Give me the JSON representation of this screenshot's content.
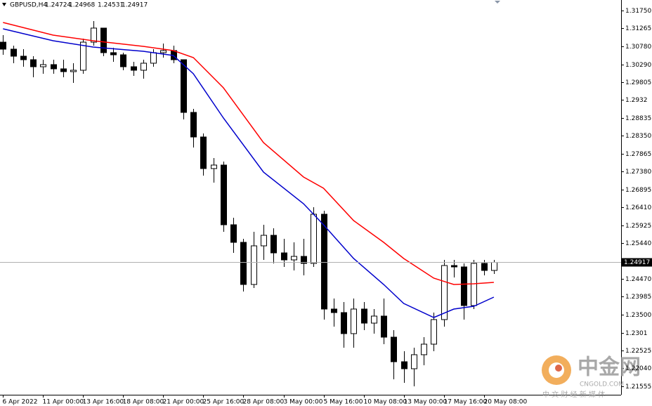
{
  "chart_data": {
    "type": "candlestick",
    "symbol": "GBPUSD,H4",
    "last_bar": {
      "open": 1.24724,
      "high": 1.24968,
      "low": 1.24531,
      "close": 1.24917
    },
    "candles": {
      "open": [
        1.30892,
        1.30702,
        1.30511,
        1.30416,
        1.30225,
        1.30283,
        1.30168,
        1.30092,
        1.3013,
        1.30892,
        1.31274,
        1.30607,
        1.30549,
        1.30225,
        1.3013,
        1.30321,
        1.30607,
        1.30664,
        1.30416,
        1.28986,
        1.28319,
        1.27462,
        1.27557,
        1.25937,
        1.2546,
        1.24317,
        1.25365,
        1.25651,
        1.25174,
        1.24984,
        1.25079,
        1.24889,
        1.26223,
        1.2365,
        1.23554,
        1.22983,
        1.2365,
        1.23268,
        1.23459,
        1.22887,
        1.2222,
        1.2203,
        1.22411,
        1.22697,
        1.23364,
        1.24831,
        1.24793,
        1.23745,
        1.24889,
        1.24698
      ],
      "high": [
        1.31083,
        1.30797,
        1.30702,
        1.30511,
        1.30416,
        1.30416,
        1.30416,
        1.30321,
        1.30988,
        1.31464,
        1.31274,
        1.3074,
        1.30607,
        1.30359,
        1.30416,
        1.30702,
        1.30854,
        1.30797,
        1.30416,
        1.29082,
        1.28415,
        1.27748,
        1.27652,
        1.26127,
        1.25556,
        1.25746,
        1.25937,
        1.25842,
        1.25556,
        1.2546,
        1.25556,
        1.26413,
        1.26318,
        1.23936,
        1.2384,
        1.23936,
        1.2384,
        1.2365,
        1.23936,
        1.23078,
        1.22506,
        1.22601,
        1.22887,
        1.23554,
        1.24984,
        1.24984,
        1.24889,
        1.24984,
        1.24984,
        1.24984
      ],
      "low": [
        1.30549,
        1.30321,
        1.30225,
        1.29939,
        1.30035,
        1.30035,
        1.29939,
        1.29787,
        1.30035,
        1.30797,
        1.30511,
        1.30359,
        1.3013,
        1.29978,
        1.29901,
        1.30225,
        1.30473,
        1.30321,
        1.28796,
        1.28033,
        1.27271,
        1.2708,
        1.25746,
        1.25174,
        1.24126,
        1.24221,
        1.24984,
        1.24889,
        1.24793,
        1.24698,
        1.24565,
        1.24793,
        1.23364,
        1.23173,
        1.22601,
        1.22601,
        1.23078,
        1.22983,
        1.22697,
        1.21744,
        1.21648,
        1.21553,
        1.22125,
        1.22506,
        1.23173,
        1.24507,
        1.23364,
        1.2365,
        1.24565,
        1.24603
      ],
      "close": [
        1.30702,
        1.30511,
        1.30416,
        1.30225,
        1.30283,
        1.30168,
        1.30092,
        1.3013,
        1.30892,
        1.31274,
        1.30607,
        1.30549,
        1.30225,
        1.3013,
        1.30321,
        1.30607,
        1.30664,
        1.30416,
        1.28986,
        1.28319,
        1.27462,
        1.27557,
        1.25937,
        1.2546,
        1.24317,
        1.25365,
        1.25651,
        1.25174,
        1.24984,
        1.25079,
        1.24889,
        1.26223,
        1.2365,
        1.23554,
        1.22983,
        1.2365,
        1.23268,
        1.23459,
        1.22887,
        1.2222,
        1.2203,
        1.22411,
        1.22697,
        1.23364,
        1.24831,
        1.24793,
        1.23745,
        1.24889,
        1.24698,
        1.24917
      ]
    },
    "series": [
      {
        "color": "#ff0000",
        "x": [
          0,
          5,
          9,
          14,
          17,
          19,
          22,
          26,
          30,
          32,
          35,
          38,
          40,
          43,
          45,
          47,
          49
        ],
        "values": [
          1.31426,
          1.31083,
          1.30931,
          1.30778,
          1.30664,
          1.30473,
          1.29654,
          1.28167,
          1.27233,
          1.26928,
          1.26051,
          1.2546,
          1.25022,
          1.24488,
          1.24317,
          1.24336,
          1.24374
        ]
      },
      {
        "color": "#0000cc",
        "x": [
          0,
          5,
          9,
          14,
          17,
          19,
          22,
          26,
          30,
          32,
          35,
          38,
          40,
          43,
          45,
          47,
          49
        ],
        "values": [
          1.31255,
          1.30931,
          1.30759,
          1.30645,
          1.3053,
          1.30035,
          1.28834,
          1.27366,
          1.26509,
          1.25937,
          1.25022,
          1.24317,
          1.23802,
          1.23421,
          1.2365,
          1.23726,
          1.23974
        ]
      }
    ],
    "xlim": [
      -0.3,
      61.7
    ],
    "xticks": [
      {
        "value": 0,
        "label": "6 Apr 2022"
      },
      {
        "value": 4,
        "label": "11 Apr 00:00"
      },
      {
        "value": 8,
        "label": "13 Apr 16:00"
      },
      {
        "value": 12,
        "label": "18 Apr 08:00"
      },
      {
        "value": 16,
        "label": "21 Apr 00:00"
      },
      {
        "value": 20,
        "label": "25 Apr 16:00"
      },
      {
        "value": 24,
        "label": "28 Apr 08:00"
      },
      {
        "value": 28,
        "label": "3 May 00:00"
      },
      {
        "value": 32,
        "label": "5 May 16:00"
      },
      {
        "value": 36,
        "label": "10 May 08:00"
      },
      {
        "value": 40,
        "label": "13 May 00:00"
      },
      {
        "value": 44,
        "label": "17 May 16:00"
      },
      {
        "value": 48,
        "label": "20 May 08:00"
      }
    ],
    "ylim": [
      1.21324,
      1.32036
    ],
    "yticks": [
      {
        "value": 1.3175,
        "label": "1.31750"
      },
      1.31265,
      {
        "value": 1.3078,
        "label": "1.30780"
      },
      {
        "value": 1.3029,
        "label": "1.30290"
      },
      1.29805,
      1.2932,
      1.28835,
      {
        "value": 1.2835,
        "label": "1.28350"
      },
      1.27865,
      {
        "value": 1.2738,
        "label": "1.27380"
      },
      1.26895,
      {
        "value": 1.2641,
        "label": "1.26410"
      },
      1.25925,
      {
        "value": 1.2544,
        "label": "1.25440"
      },
      {
        "value": 1.2447,
        "label": "1.24470"
      },
      1.23985,
      {
        "value": 1.235,
        "label": "1.23500"
      },
      1.2301,
      1.22525,
      {
        "value": 1.2204,
        "label": "1.22040"
      },
      1.21555
    ],
    "up_color": "#ffffff",
    "down_color": "#000000"
  },
  "watermark": {
    "name": "中金网",
    "site": "CNGOLD.COM",
    "slogan": "中 文 财 经 新 媒 体"
  }
}
